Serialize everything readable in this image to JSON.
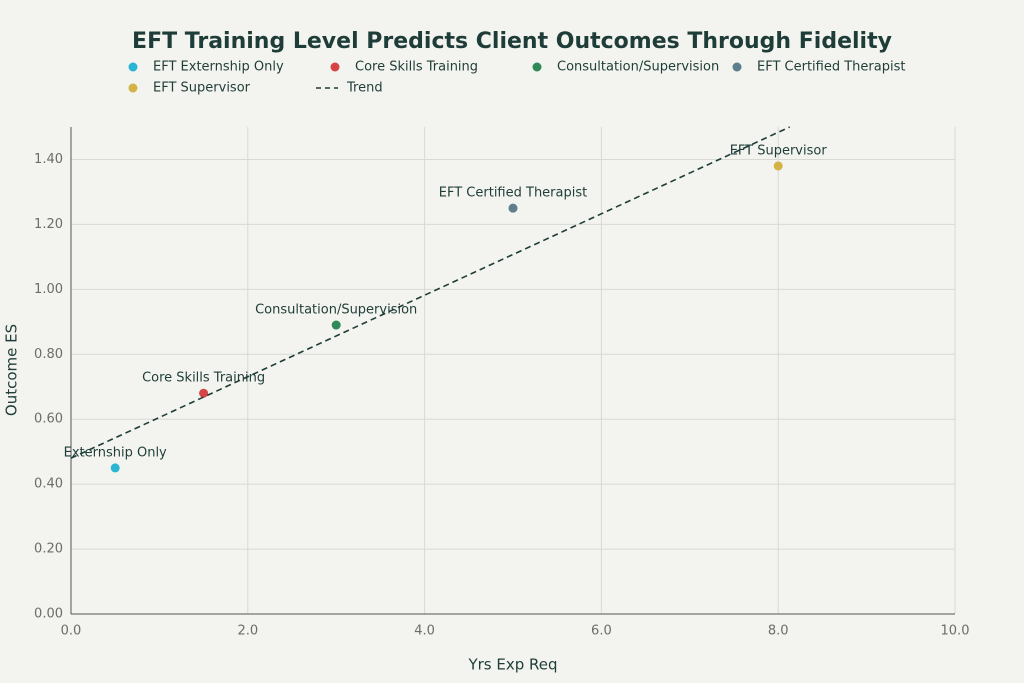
{
  "chart_data": {
    "type": "scatter",
    "title": "EFT Training Level Predicts Client Outcomes Through Fidelity",
    "x_label": "Yrs Exp Req",
    "y_label": "Outcome ES",
    "xlim": [
      0,
      10
    ],
    "ylim": [
      0,
      1.5
    ],
    "xticks": [
      {
        "value": 0,
        "label": "0.0"
      },
      {
        "value": 2,
        "label": "2.0"
      },
      {
        "value": 4,
        "label": "4.0"
      },
      {
        "value": 6,
        "label": "6.0"
      },
      {
        "value": 8,
        "label": "8.0"
      },
      {
        "value": 10,
        "label": "10.0"
      }
    ],
    "yticks": [
      {
        "value": 0,
        "label": "0.00"
      },
      {
        "value": 0.2,
        "label": "0.20"
      },
      {
        "value": 0.4,
        "label": "0.40"
      },
      {
        "value": 0.6,
        "label": "0.60"
      },
      {
        "value": 0.8,
        "label": "0.80"
      },
      {
        "value": 1,
        "label": "1.00"
      },
      {
        "value": 1.2,
        "label": "1.20"
      },
      {
        "value": 1.4,
        "label": "1.40"
      }
    ],
    "grid": true,
    "legend": "top",
    "series": [
      {
        "name": "EFT Externship Only",
        "label": "Externship Only",
        "color": "#2ab5d5",
        "x": [
          0.5
        ],
        "values": [
          0.45
        ]
      },
      {
        "name": "Core Skills Training",
        "label": "Core Skills Training",
        "color": "#d64545",
        "x": [
          1.5
        ],
        "values": [
          0.68
        ]
      },
      {
        "name": "Consultation/Supervision",
        "label": "Consultation/Supervision",
        "color": "#2f8a57",
        "x": [
          3
        ],
        "values": [
          0.89
        ]
      },
      {
        "name": "EFT Certified Therapist",
        "label": "EFT Certified Therapist",
        "color": "#5e7e8c",
        "x": [
          5
        ],
        "values": [
          1.25
        ]
      },
      {
        "name": "EFT Supervisor",
        "label": "EFT Supervisor",
        "color": "#d4b345",
        "x": [
          8
        ],
        "values": [
          1.38
        ]
      },
      {
        "name": "Trend",
        "type": "line",
        "dash": true,
        "color": "#1f3d38",
        "x": [
          0,
          8.13
        ],
        "values": [
          0.48,
          1.5
        ]
      }
    ]
  }
}
